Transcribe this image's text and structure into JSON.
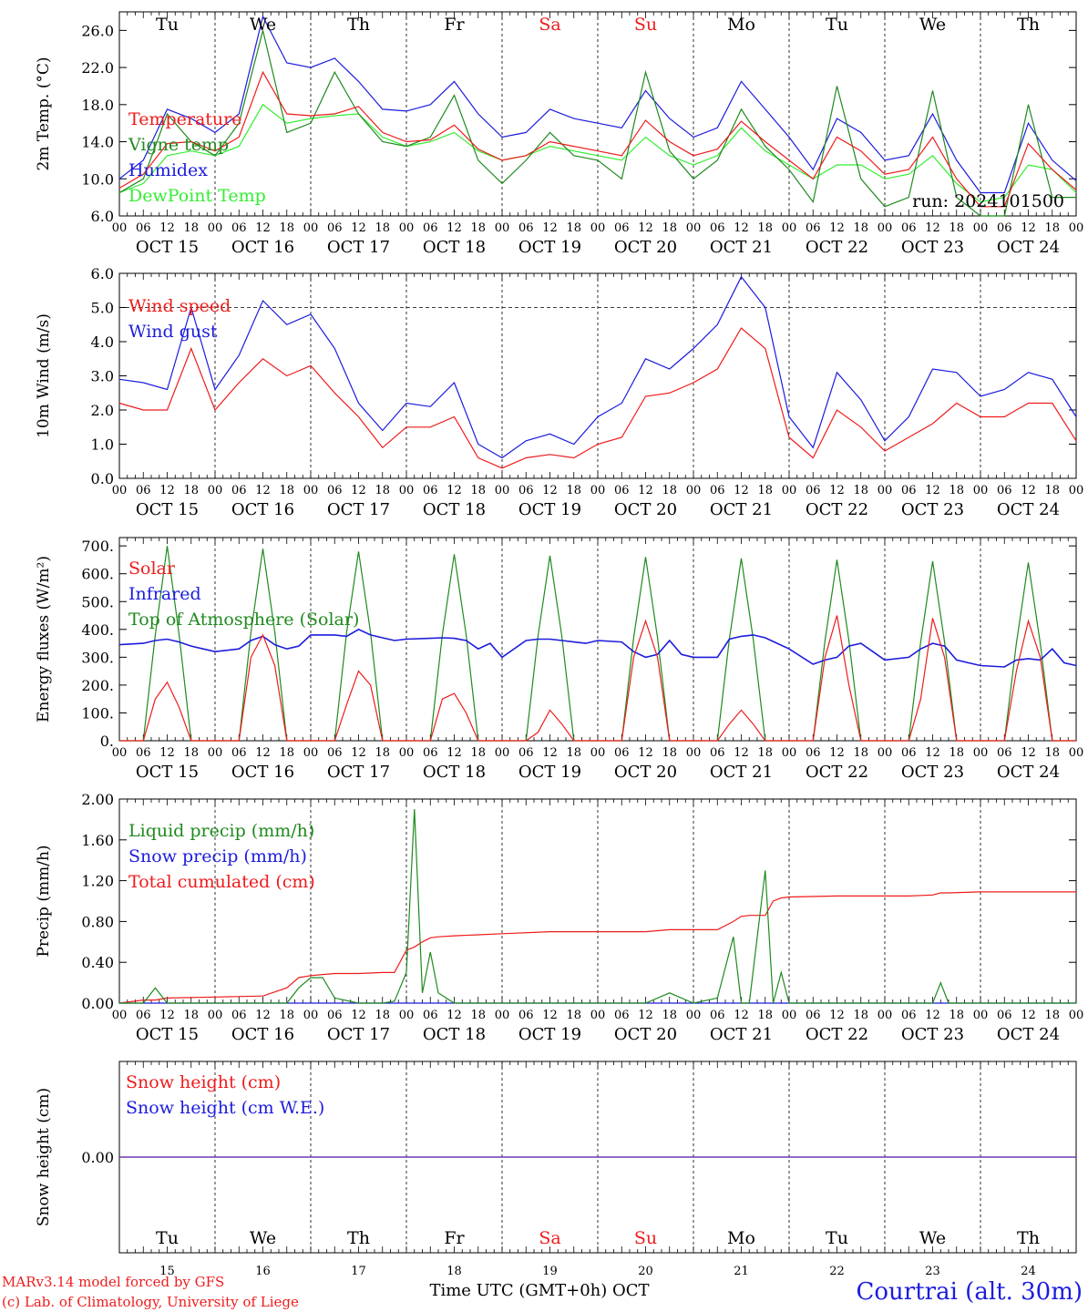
{
  "colors": {
    "red": "#ee1c1c",
    "green": "#1f8a1f",
    "blue": "#1c1cdd",
    "light_green": "#33ee33",
    "purple": "#7733aa",
    "black": "#000000"
  },
  "header": {
    "run": "run: 2024101500"
  },
  "footer": {
    "model": "MARv3.14 model forced by GFS",
    "copyright": "(c) Lab. of Climatology, University of Liege",
    "time_axis": "Time UTC (GMT+0h) OCT",
    "location": "Courtrai (alt. 30m)"
  },
  "time_axis": {
    "hour_labels": [
      "00",
      "06",
      "12",
      "18"
    ],
    "final_label": "00",
    "dates": [
      "OCT 15",
      "OCT 16",
      "OCT 17",
      "OCT 18",
      "OCT 19",
      "OCT 20",
      "OCT 21",
      "OCT 22",
      "OCT 23",
      "OCT 24"
    ],
    "day_numbers": [
      "15",
      "16",
      "17",
      "18",
      "19",
      "20",
      "21",
      "22",
      "23",
      "24"
    ],
    "weekdays": [
      {
        "label": "Tu",
        "weekend": false
      },
      {
        "label": "We",
        "weekend": false
      },
      {
        "label": "Th",
        "weekend": false
      },
      {
        "label": "Fr",
        "weekend": false
      },
      {
        "label": "Sa",
        "weekend": true
      },
      {
        "label": "Su",
        "weekend": true
      },
      {
        "label": "Mo",
        "weekend": false
      },
      {
        "label": "Tu",
        "weekend": false
      },
      {
        "label": "We",
        "weekend": false
      },
      {
        "label": "Th",
        "weekend": false
      }
    ]
  },
  "chart_data": [
    {
      "type": "line",
      "ylabel": "2m Temp. (°C)",
      "ylim": [
        6,
        28
      ],
      "yticks": [
        "6.0",
        "10.0",
        "14.0",
        "18.0",
        "22.0",
        "26.0"
      ],
      "ytick_values": [
        6,
        10,
        14,
        18,
        22,
        26
      ],
      "x_unit": "hours since OCT 15 00 UTC",
      "x": [
        0,
        6,
        12,
        18,
        24,
        30,
        36,
        42,
        48,
        54,
        60,
        66,
        72,
        78,
        84,
        90,
        96,
        102,
        108,
        114,
        120,
        126,
        132,
        138,
        144,
        150,
        156,
        162,
        168,
        174,
        180,
        186,
        192,
        198,
        204,
        210,
        216,
        222,
        228,
        234,
        240
      ],
      "series": [
        {
          "name": "Temperature",
          "color_key": "red",
          "values": [
            9.0,
            10.5,
            13.8,
            14.0,
            13.0,
            14.5,
            21.5,
            17.0,
            16.8,
            17.0,
            17.8,
            15.0,
            14.0,
            14.2,
            15.8,
            13.2,
            12.0,
            12.5,
            14.0,
            13.5,
            13.0,
            12.5,
            16.3,
            14.0,
            12.5,
            13.2,
            16.2,
            14.0,
            12.0,
            10.0,
            14.5,
            13.0,
            10.5,
            11.0,
            14.5,
            10.0,
            7.0,
            7.0,
            13.8,
            11.0,
            8.8
          ]
        },
        {
          "name": "Vigne temp",
          "color_key": "green",
          "values": [
            8.5,
            10.0,
            17.0,
            14.0,
            12.5,
            16.0,
            26.0,
            15.0,
            16.0,
            21.5,
            17.0,
            14.0,
            13.5,
            14.5,
            19.0,
            12.0,
            9.5,
            12.0,
            15.0,
            12.5,
            12.0,
            10.0,
            21.5,
            13.0,
            10.0,
            12.0,
            17.5,
            13.5,
            11.0,
            7.5,
            20.0,
            10.0,
            7.0,
            8.0,
            19.5,
            8.0,
            5.0,
            5.5,
            18.0,
            8.0,
            8.0
          ]
        },
        {
          "name": "Humidex",
          "color_key": "blue",
          "values": [
            10.0,
            12.0,
            17.5,
            16.5,
            15.0,
            17.0,
            27.5,
            22.5,
            22.0,
            23.0,
            20.5,
            17.5,
            17.3,
            18.0,
            20.5,
            17.0,
            14.5,
            15.0,
            17.5,
            16.5,
            16.0,
            15.5,
            19.5,
            16.5,
            14.5,
            15.5,
            20.5,
            17.5,
            14.5,
            11.0,
            16.5,
            15.0,
            12.0,
            12.5,
            17.0,
            12.0,
            8.5,
            8.5,
            16.0,
            12.0,
            9.8
          ]
        },
        {
          "name": "DewPoint Temp",
          "color_key": "light_green",
          "values": [
            8.5,
            9.5,
            12.5,
            13.0,
            12.5,
            13.5,
            18.0,
            16.0,
            16.5,
            16.8,
            17.0,
            14.5,
            13.5,
            14.0,
            15.0,
            13.0,
            12.0,
            12.5,
            13.5,
            13.0,
            12.5,
            12.0,
            14.5,
            12.5,
            11.5,
            12.5,
            15.5,
            13.0,
            11.5,
            10.0,
            11.5,
            11.5,
            10.0,
            10.5,
            12.5,
            9.5,
            7.5,
            8.0,
            11.5,
            11.0,
            8.5
          ]
        }
      ]
    },
    {
      "type": "line",
      "ylabel": "10m Wind (m/s)",
      "ylim": [
        0,
        6
      ],
      "yticks": [
        "0.0",
        "1.0",
        "2.0",
        "3.0",
        "4.0",
        "5.0",
        "6.0"
      ],
      "ytick_values": [
        0,
        1,
        2,
        3,
        4,
        5,
        6
      ],
      "reference_line": 5.0,
      "x_unit": "hours since OCT 15 00 UTC",
      "x": [
        0,
        6,
        12,
        18,
        24,
        30,
        36,
        42,
        48,
        54,
        60,
        66,
        72,
        78,
        84,
        90,
        96,
        102,
        108,
        114,
        120,
        126,
        132,
        138,
        144,
        150,
        156,
        162,
        168,
        174,
        180,
        186,
        192,
        198,
        204,
        210,
        216,
        222,
        228,
        234,
        240
      ],
      "series": [
        {
          "name": "Wind speed",
          "color_key": "red",
          "values": [
            2.2,
            2.0,
            2.0,
            3.8,
            2.0,
            2.8,
            3.5,
            3.0,
            3.3,
            2.5,
            1.8,
            0.9,
            1.5,
            1.5,
            1.8,
            0.6,
            0.3,
            0.6,
            0.7,
            0.6,
            1.0,
            1.2,
            2.4,
            2.5,
            2.8,
            3.2,
            4.4,
            3.8,
            1.2,
            0.6,
            2.0,
            1.5,
            0.8,
            1.2,
            1.6,
            2.2,
            1.8,
            1.8,
            2.2,
            2.2,
            1.1
          ]
        },
        {
          "name": "Wind gust",
          "color_key": "blue",
          "values": [
            2.9,
            2.8,
            2.6,
            5.0,
            2.6,
            3.6,
            5.2,
            4.5,
            4.8,
            3.8,
            2.2,
            1.4,
            2.2,
            2.1,
            2.8,
            1.0,
            0.6,
            1.1,
            1.3,
            1.0,
            1.8,
            2.2,
            3.5,
            3.2,
            3.8,
            4.5,
            5.9,
            5.0,
            1.8,
            0.9,
            3.1,
            2.3,
            1.1,
            1.8,
            3.2,
            3.1,
            2.4,
            2.6,
            3.1,
            2.9,
            1.8
          ]
        }
      ]
    },
    {
      "type": "line",
      "ylabel": "Energy fluxes (W/m²)",
      "ylim": [
        0,
        730
      ],
      "yticks": [
        "0.",
        "100.",
        "200.",
        "300.",
        "400.",
        "500.",
        "600.",
        "700."
      ],
      "ytick_values": [
        0,
        100,
        200,
        300,
        400,
        500,
        600,
        700
      ],
      "x_unit": "hours since OCT 15 00 UTC",
      "x": [
        0,
        6,
        9,
        12,
        15,
        18,
        21,
        24,
        30,
        33,
        36,
        39,
        42,
        45,
        48,
        54,
        57,
        60,
        63,
        66,
        69,
        72,
        78,
        81,
        84,
        87,
        90,
        93,
        96,
        102,
        105,
        108,
        111,
        114,
        117,
        120,
        126,
        129,
        132,
        135,
        138,
        141,
        144,
        150,
        153,
        156,
        159,
        162,
        165,
        168,
        174,
        177,
        180,
        183,
        186,
        189,
        192,
        198,
        201,
        204,
        207,
        210,
        213,
        216,
        222,
        225,
        228,
        231,
        234,
        237,
        240
      ],
      "series": [
        {
          "name": "Solar",
          "color_key": "red",
          "values": [
            0,
            0,
            150,
            210,
            120,
            0,
            0,
            0,
            0,
            300,
            380,
            270,
            0,
            0,
            0,
            0,
            130,
            250,
            200,
            0,
            0,
            0,
            0,
            150,
            170,
            100,
            0,
            0,
            0,
            0,
            30,
            110,
            60,
            0,
            0,
            0,
            0,
            300,
            430,
            300,
            0,
            0,
            0,
            0,
            60,
            110,
            60,
            0,
            0,
            0,
            0,
            300,
            450,
            200,
            0,
            0,
            0,
            0,
            150,
            440,
            300,
            0,
            0,
            0,
            0,
            250,
            430,
            300,
            0,
            0,
            0
          ]
        },
        {
          "name": "Infrared",
          "color_key": "blue",
          "values": [
            345,
            350,
            360,
            365,
            355,
            340,
            330,
            320,
            330,
            360,
            375,
            345,
            330,
            340,
            380,
            380,
            375,
            400,
            380,
            370,
            360,
            365,
            368,
            370,
            368,
            360,
            330,
            350,
            300,
            360,
            365,
            365,
            360,
            355,
            350,
            360,
            355,
            320,
            300,
            310,
            360,
            310,
            300,
            300,
            365,
            375,
            380,
            370,
            350,
            330,
            275,
            290,
            300,
            340,
            350,
            320,
            290,
            300,
            330,
            350,
            340,
            290,
            280,
            270,
            265,
            290,
            295,
            290,
            330,
            280,
            270
          ]
        },
        {
          "name": "Top of Atmosphere (Solar)",
          "color_key": "green",
          "values": [
            0,
            0,
            380,
            700,
            380,
            0,
            0,
            0,
            0,
            390,
            690,
            390,
            0,
            0,
            0,
            0,
            390,
            680,
            390,
            0,
            0,
            0,
            0,
            380,
            670,
            380,
            0,
            0,
            0,
            0,
            375,
            665,
            375,
            0,
            0,
            0,
            0,
            370,
            660,
            370,
            0,
            0,
            0,
            0,
            365,
            655,
            365,
            0,
            0,
            0,
            0,
            360,
            650,
            360,
            0,
            0,
            0,
            0,
            355,
            645,
            355,
            0,
            0,
            0,
            0,
            350,
            640,
            350,
            0,
            0,
            0
          ]
        }
      ]
    },
    {
      "type": "line",
      "ylabel": "Precip (mm/h)",
      "ylim": [
        0,
        2
      ],
      "yticks": [
        "0.00",
        "0.40",
        "0.80",
        "1.20",
        "1.60",
        "2.00"
      ],
      "ytick_values": [
        0,
        0.4,
        0.8,
        1.2,
        1.6,
        2.0
      ],
      "x_unit": "hours since OCT 15 00 UTC",
      "x": [
        0,
        6,
        9,
        12,
        24,
        36,
        42,
        45,
        48,
        51,
        54,
        60,
        66,
        69,
        72,
        74,
        76,
        78,
        80,
        84,
        90,
        96,
        108,
        120,
        132,
        138,
        144,
        150,
        154,
        156,
        158,
        162,
        164,
        166,
        168,
        180,
        192,
        198,
        204,
        206,
        208,
        216,
        228,
        240
      ],
      "series": [
        {
          "name": "Liquid precip (mm/h)",
          "color_key": "green",
          "values": [
            0,
            0,
            0.15,
            0,
            0,
            0,
            0,
            0.15,
            0.25,
            0.25,
            0.05,
            0,
            0,
            0.02,
            0.3,
            1.9,
            0.1,
            0.5,
            0.1,
            0,
            0,
            0,
            0,
            0,
            0,
            0.1,
            0,
            0.05,
            0.65,
            0,
            0,
            1.3,
            0,
            0.3,
            0,
            0,
            0,
            0,
            0,
            0.2,
            0,
            0,
            0,
            0
          ]
        },
        {
          "name": "Snow precip (mm/h)",
          "color_key": "blue",
          "values": [
            0,
            0,
            0,
            0,
            0,
            0,
            0,
            0,
            0,
            0,
            0,
            0,
            0,
            0,
            0,
            0,
            0,
            0,
            0,
            0,
            0,
            0,
            0,
            0,
            0,
            0,
            0,
            0,
            0,
            0,
            0,
            0,
            0,
            0,
            0,
            0,
            0,
            0,
            0,
            0,
            0,
            0,
            0,
            0
          ]
        },
        {
          "name": "Total cumulated (cm)",
          "color_key": "red",
          "values": [
            0,
            0.03,
            0.03,
            0.05,
            0.06,
            0.07,
            0.15,
            0.25,
            0.27,
            0.28,
            0.29,
            0.29,
            0.3,
            0.3,
            0.52,
            0.55,
            0.6,
            0.64,
            0.65,
            0.66,
            0.67,
            0.68,
            0.7,
            0.7,
            0.7,
            0.72,
            0.72,
            0.72,
            0.8,
            0.85,
            0.86,
            0.86,
            1.0,
            1.03,
            1.04,
            1.05,
            1.05,
            1.05,
            1.06,
            1.08,
            1.08,
            1.09,
            1.09,
            1.09
          ]
        }
      ]
    },
    {
      "type": "line",
      "ylabel": "Snow height (cm)",
      "ylim": [
        -1,
        1
      ],
      "yticks": [
        "0.00"
      ],
      "ytick_values": [
        0
      ],
      "x_unit": "hours since OCT 15 00 UTC",
      "x": [
        0,
        240
      ],
      "series": [
        {
          "name": "Snow height (cm)",
          "color_key": "red",
          "values": [
            0,
            0
          ]
        },
        {
          "name": "Snow height (cm W.E.)",
          "color_key": "blue",
          "values": [
            0,
            0
          ]
        }
      ]
    }
  ]
}
